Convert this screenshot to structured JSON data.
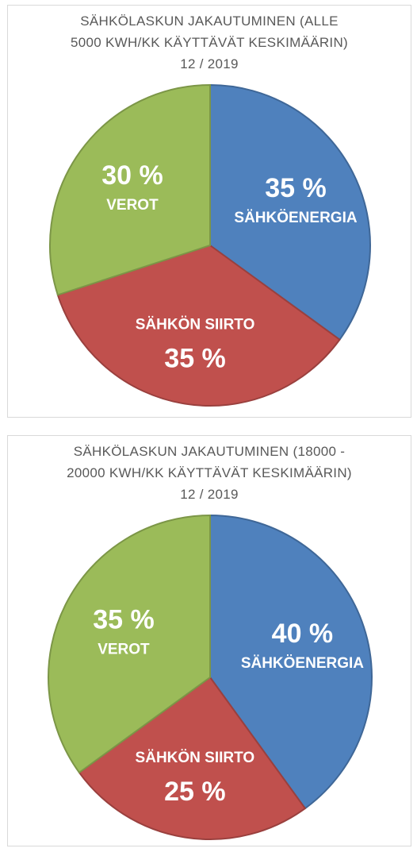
{
  "chart_data": [
    {
      "type": "pie",
      "title": [
        "SÄHKÖLASKUN JAKAUTUMINEN (ALLE",
        "5000 KWH/KK KÄYTTÄVÄT KESKIMÄÄRIN)",
        "12 / 2019"
      ],
      "slices": [
        {
          "label": "SÄHKÖENERGIA",
          "value": 35,
          "value_label": "35 %",
          "color": "#4f81bd"
        },
        {
          "label": "SÄHKÖN SIIRTO",
          "value": 35,
          "value_label": "35 %",
          "color": "#c0504d"
        },
        {
          "label": "VEROT",
          "value": 30,
          "value_label": "30 %",
          "color": "#9bbb59"
        }
      ]
    },
    {
      "type": "pie",
      "title": [
        "SÄHKÖLASKUN JAKAUTUMINEN (18000 -",
        "20000 KWH/KK KÄYTTÄVÄT KESKIMÄÄRIN)",
        "12 / 2019"
      ],
      "slices": [
        {
          "label": "SÄHKÖENERGIA",
          "value": 40,
          "value_label": "40 %",
          "color": "#4f81bd"
        },
        {
          "label": "SÄHKÖN SIIRTO",
          "value": 25,
          "value_label": "25 %",
          "color": "#c0504d"
        },
        {
          "label": "VEROT",
          "value": 35,
          "value_label": "35 %",
          "color": "#9bbb59"
        }
      ]
    }
  ]
}
